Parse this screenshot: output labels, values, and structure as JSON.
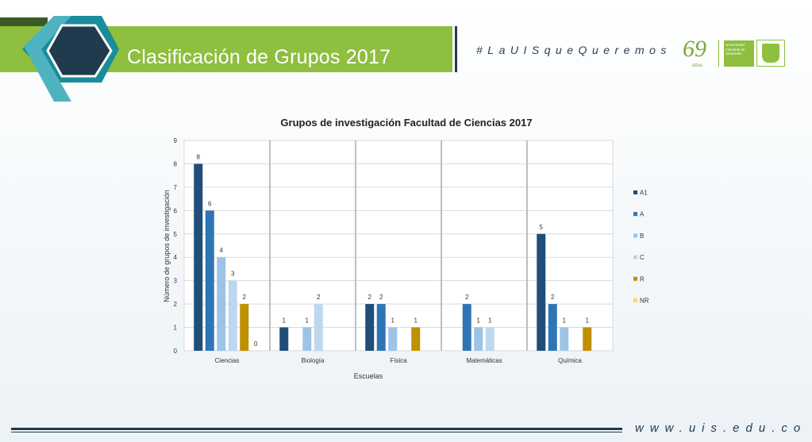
{
  "slide": {
    "title": "Clasificación de Grupos 2017",
    "hashtag": "#LaUISqueQueremos",
    "logo_69": "69",
    "logo_69_sub": "años",
    "logo_uis_text": "Universidad Industrial de Santander",
    "footer_url": "www.uis.edu.co"
  },
  "colors": {
    "header_green": "#8ebf3f",
    "navy": "#1f3b4d",
    "teal": "#1a8c9b"
  },
  "chart_data": {
    "type": "bar",
    "title": "Grupos de investigación Facultad de Ciencias 2017",
    "xlabel": "Escuelas",
    "ylabel": "Número de grupos de investigación",
    "categories": [
      "Ciencias",
      "Biología",
      "Física",
      "Matemáticas",
      "Química"
    ],
    "ylim": [
      0,
      9
    ],
    "yticks": [
      "0",
      "1",
      "2",
      "3",
      "4",
      "5",
      "6",
      "7",
      "8",
      "9"
    ],
    "legend_position": "right",
    "grid": true,
    "series": [
      {
        "name": "A1",
        "color": "#1f4e79",
        "values": [
          8,
          1,
          2,
          null,
          5
        ],
        "labels": [
          "8",
          "1",
          "2",
          "",
          "5"
        ]
      },
      {
        "name": "A",
        "color": "#2e75b6",
        "values": [
          6,
          null,
          2,
          2,
          2
        ],
        "labels": [
          "6",
          "",
          "2",
          "2",
          "2"
        ]
      },
      {
        "name": "B",
        "color": "#9dc3e6",
        "values": [
          4,
          1,
          1,
          1,
          1
        ],
        "labels": [
          "4",
          "1",
          "1",
          "1",
          "1"
        ]
      },
      {
        "name": "C",
        "color": "#bdd7ee",
        "values": [
          3,
          2,
          null,
          1,
          null
        ],
        "labels": [
          "3",
          "2",
          "",
          "1",
          ""
        ]
      },
      {
        "name": "R",
        "color": "#bf9000",
        "values": [
          2,
          null,
          1,
          null,
          1
        ],
        "labels": [
          "2",
          "",
          "1",
          "",
          "1"
        ]
      },
      {
        "name": "NR",
        "color": "#ffd966",
        "values": [
          0,
          null,
          null,
          null,
          null
        ],
        "labels": [
          "0",
          "",
          "",
          "",
          ""
        ]
      }
    ]
  }
}
